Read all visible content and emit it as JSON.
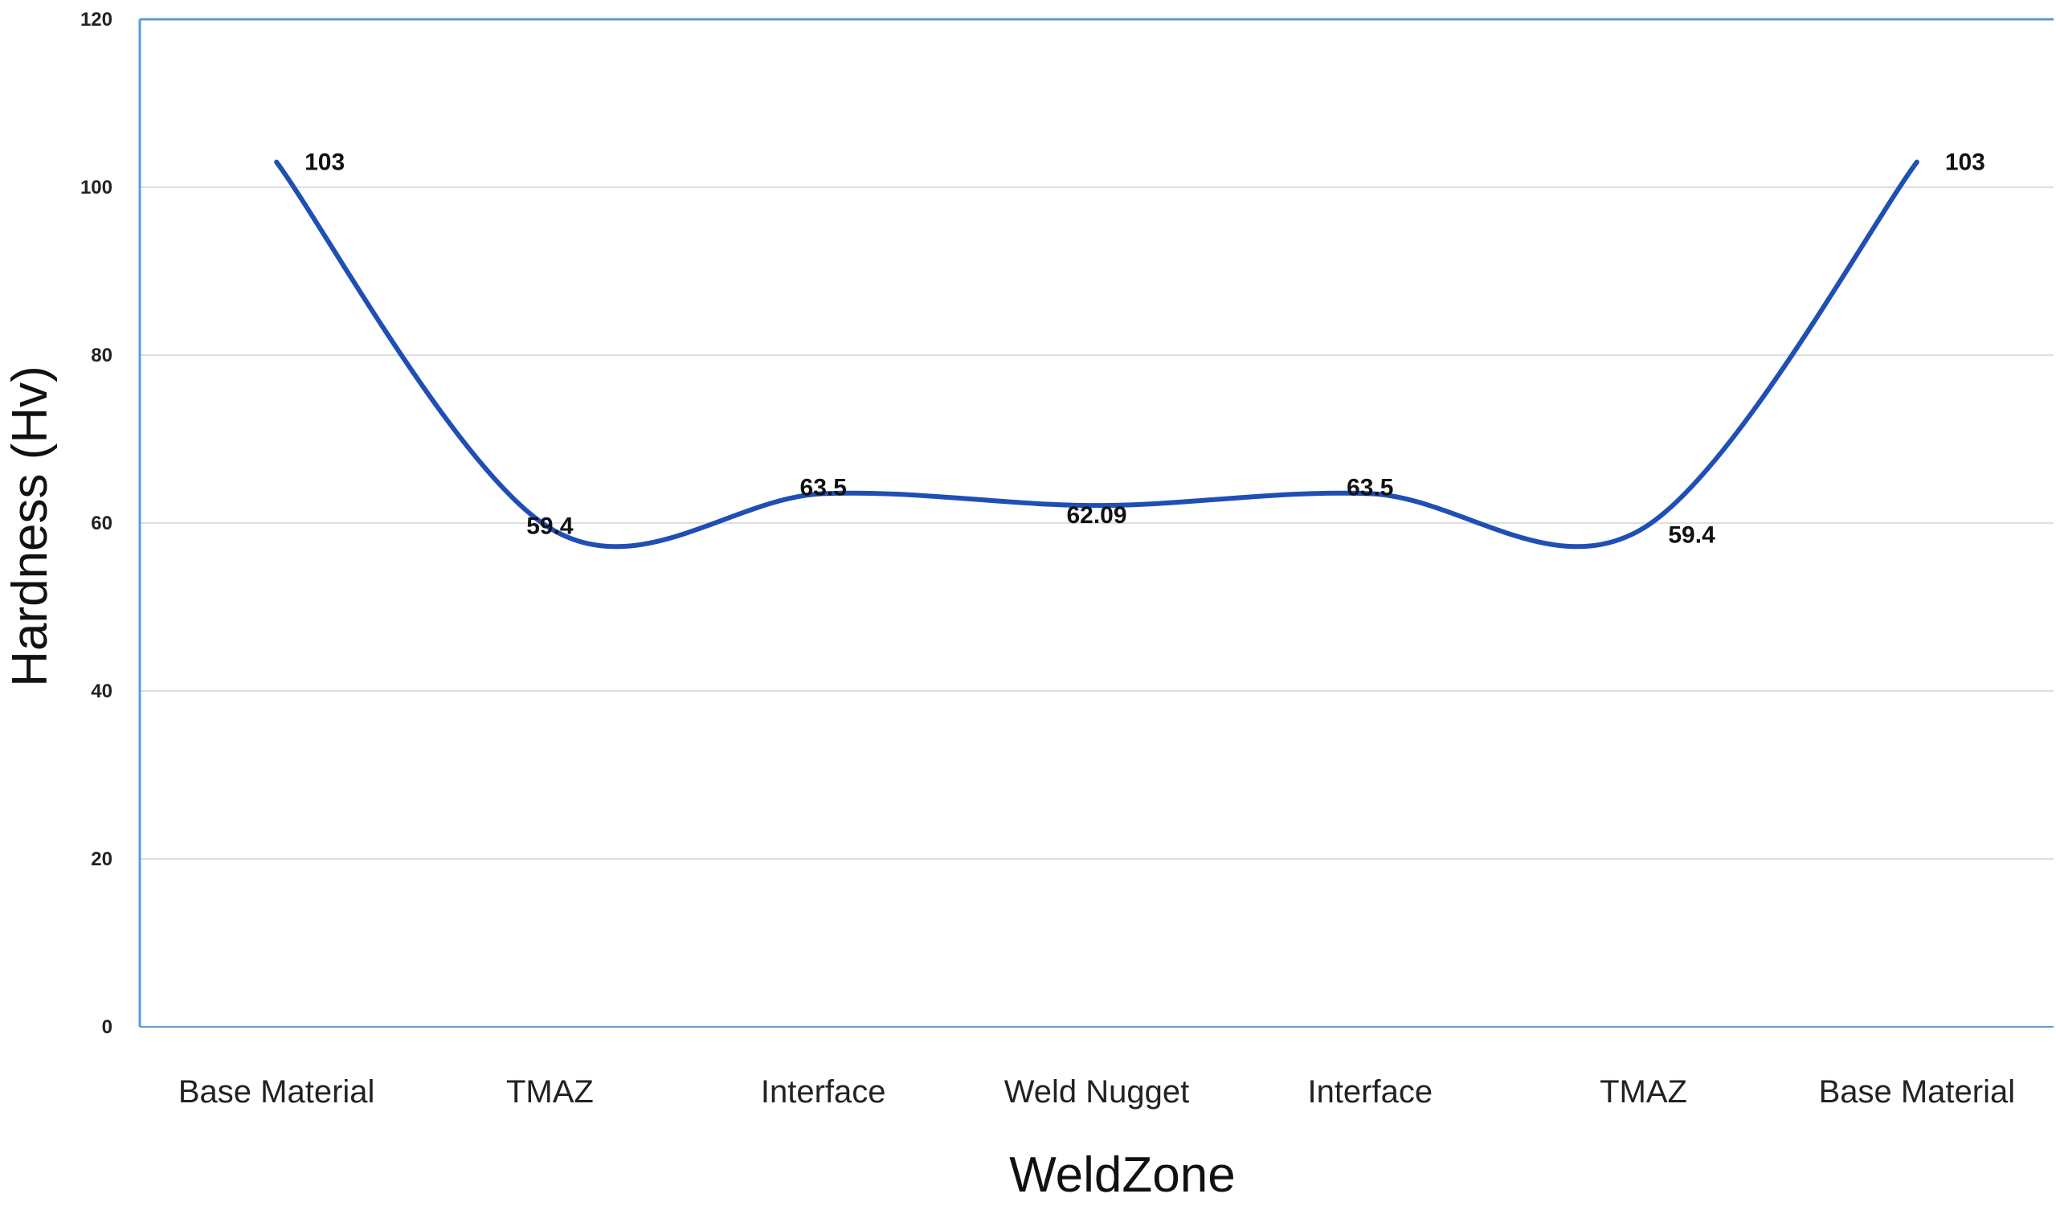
{
  "chart_data": {
    "type": "line",
    "categories": [
      "Base Material",
      "TMAZ",
      "Interface",
      "Weld Nugget",
      "Interface",
      "TMAZ",
      "Base Material"
    ],
    "series": [
      {
        "values": [
          103,
          59.4,
          63.5,
          62.09,
          63.5,
          59.4,
          103
        ],
        "labels": [
          "103",
          "59.4",
          "63.5",
          "62.09",
          "63.5",
          "59.4",
          "103"
        ],
        "color": "#1f4fb5"
      }
    ],
    "title": "",
    "xlabel": "WeldZone",
    "ylabel": "Hardness (Hv)",
    "ylim": [
      0,
      120
    ],
    "yticks": [
      "0",
      "20",
      "40",
      "60",
      "80",
      "100",
      "120"
    ],
    "grid": true,
    "smooth": true,
    "legend": "none",
    "colors": {
      "axis": "#5b9bd5",
      "grid": "#dedede",
      "line": "#1f4fb5"
    }
  }
}
